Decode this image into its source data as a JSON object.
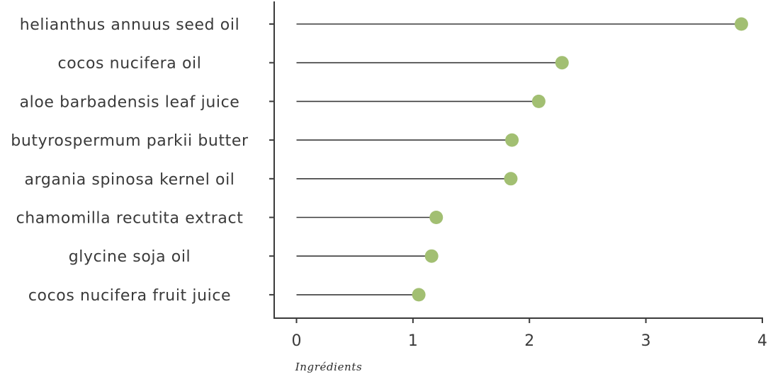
{
  "chart_data": {
    "type": "lollipop",
    "xlabel": "Ingrédients",
    "ylabel": "",
    "xlim": [
      -0.2,
      4
    ],
    "xticks": [
      "0",
      "1",
      "2",
      "3",
      "4"
    ],
    "grid": false,
    "colors": {
      "marker": "#a2bf72",
      "stem": "#3a3a3a",
      "axis": "#3a3a3a"
    },
    "categories": [
      "helianthus annuus seed oil",
      "cocos nucifera oil",
      "aloe barbadensis leaf juice",
      "butyrospermum parkii butter",
      "argania spinosa kernel oil",
      "chamomilla recutita extract",
      "glycine soja oil",
      "cocos nucifera fruit juice"
    ],
    "values": [
      3.82,
      2.28,
      2.08,
      1.85,
      1.84,
      1.2,
      1.16,
      1.05
    ]
  }
}
